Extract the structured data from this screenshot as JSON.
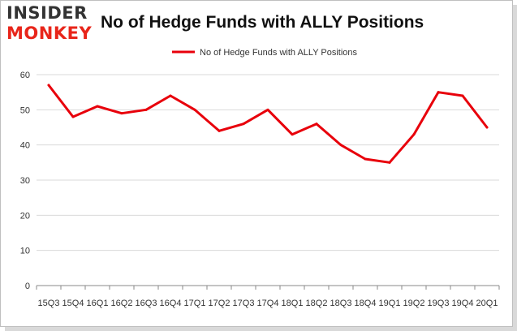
{
  "logo": {
    "line1": "INSIDER",
    "line2": "MONKEY"
  },
  "colors": {
    "series": "#e8000b",
    "grid": "#d9d9d9",
    "axis": "#888888",
    "logo_red": "#e8251a",
    "logo_dark": "#333333"
  },
  "chart_data": {
    "type": "line",
    "title": "No of Hedge Funds with ALLY Positions",
    "xlabel": "",
    "ylabel": "",
    "ylim": [
      0,
      60
    ],
    "yticks": [
      0,
      10,
      20,
      30,
      40,
      50,
      60
    ],
    "grid": "horizontal",
    "legend_position": "top-center",
    "categories": [
      "15Q3",
      "15Q4",
      "16Q1",
      "16Q2",
      "16Q3",
      "16Q4",
      "17Q1",
      "17Q2",
      "17Q3",
      "17Q4",
      "18Q1",
      "18Q2",
      "18Q3",
      "18Q4",
      "19Q1",
      "19Q2",
      "19Q3",
      "19Q4",
      "20Q1"
    ],
    "series": [
      {
        "name": "No of Hedge Funds with ALLY Positions",
        "values": [
          57,
          48,
          51,
          49,
          50,
          54,
          50,
          44,
          46,
          50,
          43,
          46,
          40,
          36,
          35,
          43,
          55,
          54,
          45
        ]
      }
    ]
  }
}
